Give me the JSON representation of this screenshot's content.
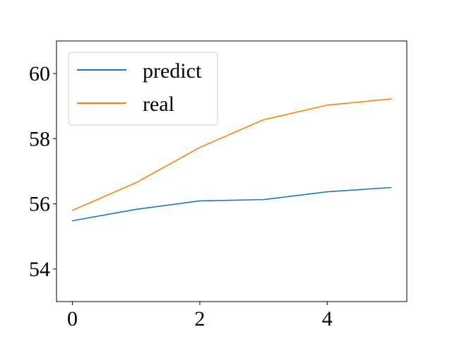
{
  "chart_data": {
    "type": "line",
    "x": [
      0,
      1,
      2,
      3,
      4,
      5
    ],
    "series": [
      {
        "name": "predict",
        "color": "#1f77b4",
        "values": [
          55.48,
          55.83,
          56.09,
          56.13,
          56.37,
          56.5
        ]
      },
      {
        "name": "real",
        "color": "#ff7f0e",
        "values": [
          55.8,
          56.65,
          57.73,
          58.58,
          59.03,
          59.22
        ]
      }
    ],
    "xlim": [
      -0.25,
      5.25
    ],
    "ylim": [
      53.0,
      61.0
    ],
    "xticks": [
      0,
      2,
      4
    ],
    "yticks": [
      54,
      56,
      58,
      60
    ],
    "grid": false,
    "legend_position": "upper-left"
  }
}
